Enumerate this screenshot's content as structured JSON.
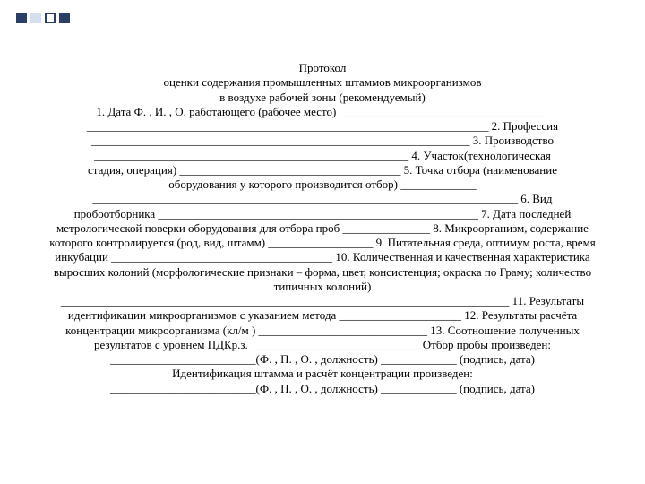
{
  "decor": {
    "navy": "#2b3e66",
    "light": "#d7def0"
  },
  "title1": "Протокол",
  "title2": "оценки содержания промышленных штаммов микроорганизмов",
  "title3": "в воздухе рабочей зоны (рекомендуемый)",
  "l1": "1. Дата Ф. , И. , О. работающего (рабочее место) ____________________________________",
  "l2": "_____________________________________________________________________ 2. Профессия",
  "l3": "_________________________________________________________________ 3. Производство",
  "l4": "______________________________________________________ 4. Участок(технологическая",
  "l5": "стадия, операция) ______________________________________ 5. Точка отбора (наименование",
  "l6": "оборудования у которого производится отбор) _____________",
  "l7": "_________________________________________________________________________ 6. Вид",
  "l8": "пробоотборника _______________________________________________________ 7. Дата последней",
  "l9": "метрологической поверки оборудования для отбора проб _______________ 8. Микроорганизм, содержание",
  "l10": "которого контролируется (род, вид, штамм) __________________ 9. Питательная среда, оптимум роста, время",
  "l11": "инкубации ______________________________________ 10. Количественная и качественная характеристика",
  "l12": "выросших колоний (морфологические признаки – форма, цвет, консистенция; окраска по Граму; количество",
  "l13": "типичных колоний)",
  "l14": "_____________________________________________________________________________ 11. Результаты",
  "l15": "идентификации микроорганизмов с указанием метода _____________________ 12. Результаты расчёта",
  "l16": "концентрации микроорганизма (кл/м ) _____________________________ 13. Соотношение полученных",
  "l17": "результатов с уровнем ПДКр.з. _____________________________ Отбор пробы произведен:",
  "l18": "_________________________(Ф. , П. , О. , должность) _____________ (подпись, дата)",
  "l19": "Идентификация штамма и расчёт концентрации произведен:",
  "l20": "_________________________(Ф. , П. , О. , должность) _____________ (подпись, дата)"
}
